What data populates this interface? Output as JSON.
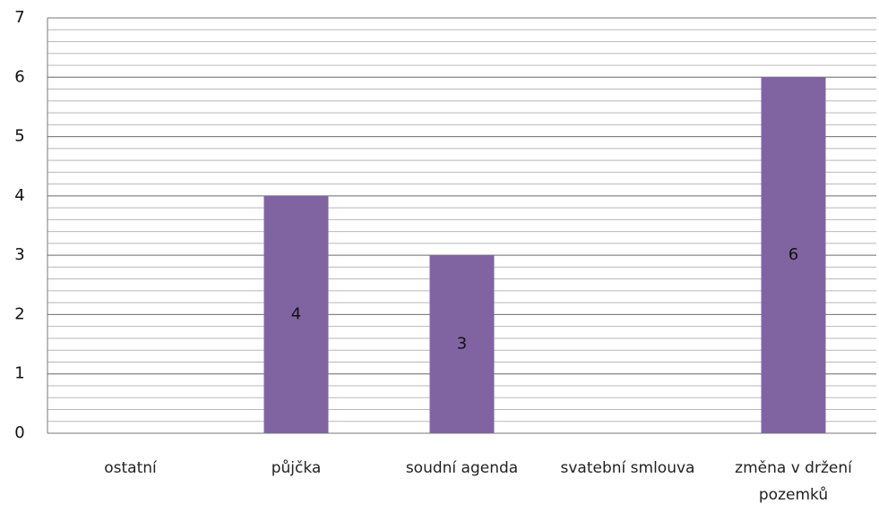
{
  "chart_data": {
    "type": "bar",
    "categories": [
      "ostatní",
      "půjčka",
      "soudní agenda",
      "svatební smlouva",
      "změna v držení pozemků"
    ],
    "values": [
      null,
      4,
      3,
      null,
      6
    ],
    "color": "#8064a2",
    "ylim": [
      0,
      7
    ],
    "yticks": [
      0,
      1,
      2,
      3,
      4,
      5,
      6,
      7
    ],
    "grid": true,
    "minor_grid_step": 0.2
  }
}
